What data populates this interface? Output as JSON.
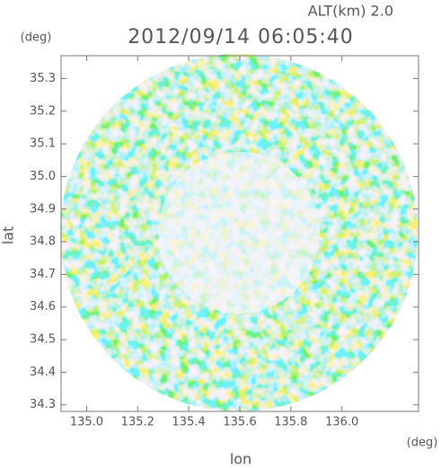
{
  "chart_data": {
    "type": "radar-ppi",
    "title": "2012/09/14 06:05:40",
    "subtitle": "ALT(km) 2.0",
    "x_label": "lon",
    "x_unit": "(deg)",
    "y_label": "lat",
    "y_unit": "(deg)",
    "xlim": [
      134.9,
      136.3
    ],
    "ylim": [
      34.28,
      35.37
    ],
    "xticks": [
      {
        "value": 135.0,
        "label": "135.0"
      },
      {
        "value": 135.2,
        "label": "135.2"
      },
      {
        "value": 135.4,
        "label": "135.4"
      },
      {
        "value": 135.6,
        "label": "135.6"
      },
      {
        "value": 135.8,
        "label": "135.8"
      },
      {
        "value": 136.0,
        "label": "136.0"
      }
    ],
    "yticks": [
      {
        "value": 34.3,
        "label": "34.3"
      },
      {
        "value": 34.4,
        "label": "34.4"
      },
      {
        "value": 34.5,
        "label": "34.5"
      },
      {
        "value": 34.6,
        "label": "34.6"
      },
      {
        "value": 34.7,
        "label": "34.7"
      },
      {
        "value": 34.8,
        "label": "34.8"
      },
      {
        "value": 34.9,
        "label": "34.9"
      },
      {
        "value": 35.0,
        "label": "35.0"
      },
      {
        "value": 35.1,
        "label": "35.1"
      },
      {
        "value": 35.2,
        "label": "35.2"
      },
      {
        "value": 35.3,
        "label": "35.3"
      }
    ]
  }
}
